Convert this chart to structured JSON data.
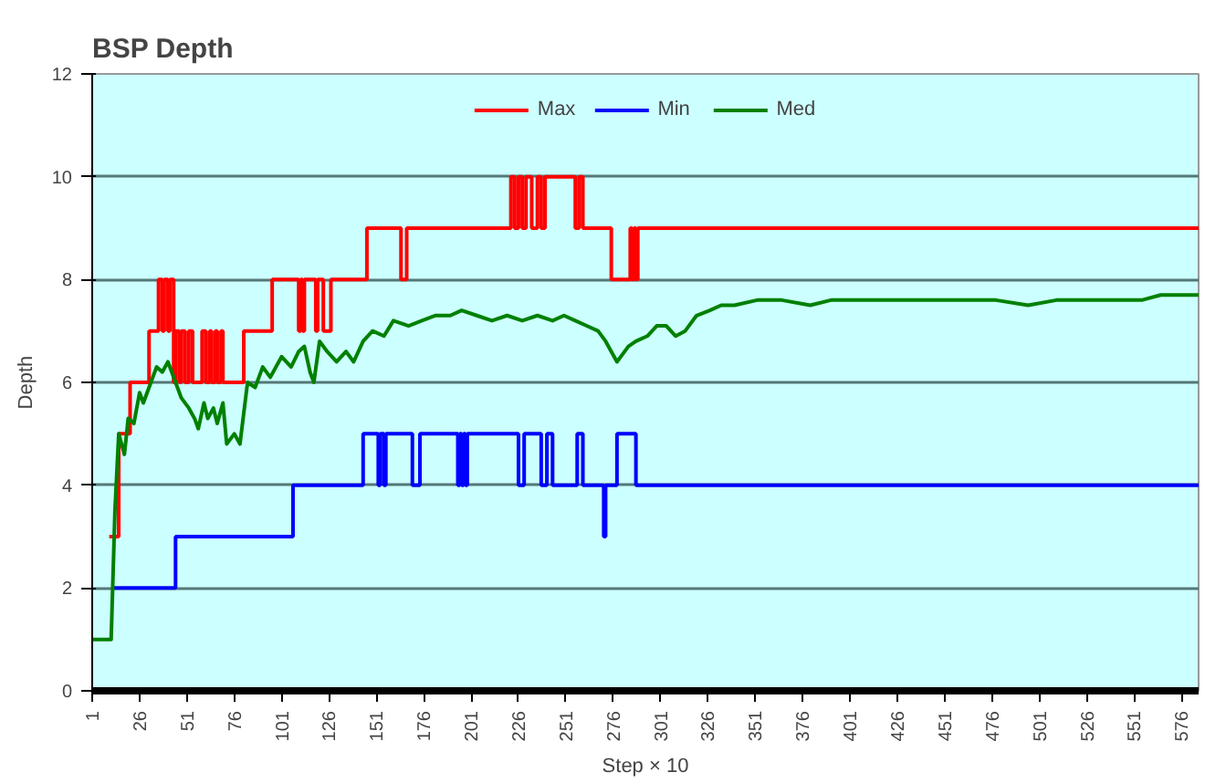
{
  "chart_data": {
    "type": "line",
    "title": "BSP Depth",
    "xlabel": "Step × 10",
    "ylabel": "Depth",
    "xlim": [
      1,
      585
    ],
    "xticks": [
      1,
      26,
      51,
      76,
      101,
      126,
      151,
      176,
      201,
      226,
      251,
      276,
      301,
      326,
      351,
      376,
      401,
      426,
      451,
      476,
      501,
      526,
      551,
      576
    ],
    "ylim": [
      0,
      12
    ],
    "yticks": [
      0,
      2,
      4,
      6,
      8,
      10,
      12
    ],
    "grid": "y",
    "legend": "top",
    "marker": "none",
    "line_style": "solid",
    "series": [
      {
        "name": "Max",
        "type": "step",
        "color": "#ff0000",
        "x": [
          10,
          15,
          21,
          31,
          36,
          38,
          39,
          41,
          42,
          44,
          45,
          47,
          48,
          50,
          52,
          54,
          59,
          61,
          63,
          64,
          66,
          67,
          69,
          70,
          81,
          96,
          110,
          111,
          112,
          113,
          119,
          120,
          123,
          127,
          146,
          164,
          167,
          222,
          224,
          226,
          228,
          230,
          233,
          236,
          238,
          240,
          256,
          258,
          260,
          275,
          285,
          286,
          287,
          288,
          289,
          585
        ],
        "values": [
          3,
          5,
          6,
          7,
          8,
          7,
          8,
          7,
          8,
          6,
          7,
          6,
          7,
          6,
          7,
          6,
          7,
          6,
          7,
          6,
          7,
          6,
          7,
          6,
          7,
          8,
          7,
          8,
          7,
          8,
          7,
          8,
          7,
          8,
          9,
          8,
          9,
          10,
          9,
          10,
          9,
          10,
          9,
          10,
          9,
          10,
          9,
          10,
          9,
          8,
          9,
          8,
          9,
          8,
          9,
          9
        ]
      },
      {
        "name": "Min",
        "type": "step",
        "color": "#0000ff",
        "x": [
          12,
          45,
          107,
          144,
          152,
          153,
          155,
          156,
          170,
          174,
          194,
          195,
          196,
          197,
          198,
          199,
          226,
          229,
          238,
          241,
          244,
          257,
          260,
          271,
          272,
          278,
          288,
          585
        ],
        "values": [
          2,
          3,
          4,
          5,
          4,
          5,
          4,
          5,
          4,
          5,
          4,
          5,
          4,
          5,
          4,
          5,
          4,
          5,
          4,
          5,
          4,
          5,
          4,
          3,
          4,
          5,
          4,
          4
        ]
      },
      {
        "name": "Med",
        "type": "line",
        "color": "#008000",
        "x": [
          1,
          11,
          13,
          15,
          18,
          20,
          23,
          26,
          28,
          32,
          35,
          38,
          41,
          45,
          48,
          52,
          55,
          57,
          60,
          62,
          65,
          67,
          70,
          72,
          76,
          79,
          83,
          87,
          91,
          95,
          101,
          106,
          110,
          113,
          116,
          118,
          121,
          125,
          130,
          135,
          139,
          144,
          149,
          155,
          160,
          168,
          175,
          182,
          190,
          196,
          204,
          212,
          220,
          228,
          236,
          244,
          250,
          256,
          262,
          268,
          272,
          275,
          278,
          280,
          284,
          288,
          294,
          299,
          304,
          309,
          314,
          320,
          327,
          333,
          340,
          352,
          365,
          380,
          391,
          405,
          418,
          430,
          445,
          460,
          478,
          495,
          510,
          525,
          546,
          555,
          565,
          575,
          585
        ],
        "values": [
          1,
          1,
          3.5,
          5,
          4.6,
          5.3,
          5.2,
          5.8,
          5.6,
          6.0,
          6.3,
          6.2,
          6.4,
          6.0,
          5.7,
          5.5,
          5.3,
          5.1,
          5.6,
          5.3,
          5.5,
          5.2,
          5.6,
          4.8,
          5.0,
          4.8,
          6.0,
          5.9,
          6.3,
          6.1,
          6.5,
          6.3,
          6.6,
          6.7,
          6.2,
          6.0,
          6.8,
          6.6,
          6.4,
          6.6,
          6.4,
          6.8,
          7.0,
          6.9,
          7.2,
          7.1,
          7.2,
          7.3,
          7.3,
          7.4,
          7.3,
          7.2,
          7.3,
          7.2,
          7.3,
          7.2,
          7.3,
          7.2,
          7.1,
          7.0,
          6.8,
          6.6,
          6.4,
          6.5,
          6.7,
          6.8,
          6.9,
          7.1,
          7.1,
          6.9,
          7.0,
          7.3,
          7.4,
          7.5,
          7.5,
          7.6,
          7.6,
          7.5,
          7.6,
          7.6,
          7.6,
          7.6,
          7.6,
          7.6,
          7.6,
          7.5,
          7.6,
          7.6,
          7.6,
          7.6,
          7.7,
          7.7,
          7.7
        ]
      }
    ]
  }
}
